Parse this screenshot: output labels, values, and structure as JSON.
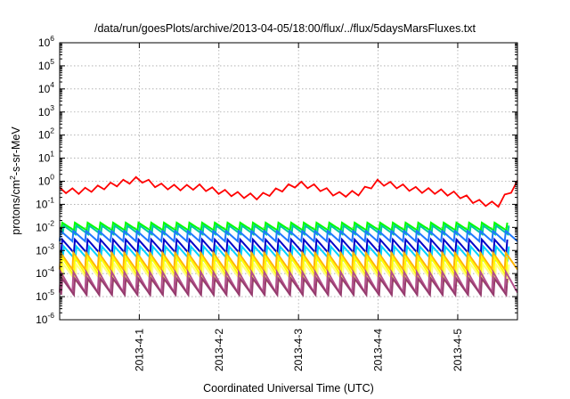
{
  "chart_data": {
    "type": "line",
    "title": "/data/run/goesPlots/archive/2013-04-05/18:00/flux/../flux/5daysMarsFluxes.txt",
    "xlabel": "Coordinated Universal Time (UTC)",
    "ylabel": {
      "prefix": "protons/cm",
      "superscript": "2",
      "suffix": "-s-sr-MeV"
    },
    "y_scale": "log",
    "ylim": [
      1e-06,
      1000000.0
    ],
    "y_ticks": [
      {
        "base": "10",
        "exp": "6",
        "value": 1000000.0
      },
      {
        "base": "10",
        "exp": "5",
        "value": 100000.0
      },
      {
        "base": "10",
        "exp": "4",
        "value": 10000.0
      },
      {
        "base": "10",
        "exp": "3",
        "value": 1000.0
      },
      {
        "base": "10",
        "exp": "2",
        "value": 100.0
      },
      {
        "base": "10",
        "exp": "1",
        "value": 10.0
      },
      {
        "base": "10",
        "exp": "0",
        "value": 1.0
      },
      {
        "base": "10",
        "exp": "-1",
        "value": 0.1
      },
      {
        "base": "10",
        "exp": "-2",
        "value": 0.01
      },
      {
        "base": "10",
        "exp": "-3",
        "value": 0.001
      },
      {
        "base": "10",
        "exp": "-4",
        "value": 0.0001
      },
      {
        "base": "10",
        "exp": "-5",
        "value": 1e-05
      },
      {
        "base": "10",
        "exp": "-6",
        "value": 1e-06
      }
    ],
    "xlim": [
      "2013-03-31T00:00",
      "2013-04-05T18:00"
    ],
    "x_ticks": [
      "2013-4-1",
      "2013-4-2",
      "2013-4-3",
      "2013-4-4",
      "2013-4-5"
    ],
    "x_tick_dates": [
      "2013-04-01T00:00",
      "2013-04-02T00:00",
      "2013-04-03T00:00",
      "2013-04-04T00:00",
      "2013-04-05T00:00"
    ],
    "grid": true,
    "legend": "none",
    "sawtooth_cycles": 36,
    "series": [
      {
        "color": "#ff0000",
        "times": [
          "2013-03-31T00:00",
          "2013-03-31T06:00",
          "2013-03-31T12:00",
          "2013-03-31T18:00",
          "2013-04-01T00:00",
          "2013-04-01T06:00",
          "2013-04-01T12:00",
          "2013-04-01T18:00",
          "2013-04-02T00:00",
          "2013-04-02T06:00",
          "2013-04-02T12:00",
          "2013-04-02T18:00",
          "2013-04-03T00:00",
          "2013-04-03T06:00",
          "2013-04-03T12:00",
          "2013-04-03T18:00",
          "2013-04-04T00:00",
          "2013-04-04T06:00",
          "2013-04-04T12:00",
          "2013-04-04T18:00",
          "2013-04-05T00:00",
          "2013-04-05T06:00",
          "2013-04-05T12:00",
          "2013-04-05T18:00"
        ],
        "values": [
          0.4,
          0.35,
          0.5,
          0.8,
          1.2,
          0.6,
          0.5,
          0.55,
          0.35,
          0.25,
          0.2,
          0.4,
          0.75,
          0.5,
          0.25,
          0.3,
          0.9,
          0.6,
          0.4,
          0.35,
          0.25,
          0.12,
          0.09,
          0.8
        ]
      },
      {
        "color": "#00ff00",
        "times": [
          "2013-03-31T00:00",
          "2013-04-05T18:00"
        ],
        "values": [
          0.016,
          0.016
        ],
        "trough": 0.0075
      },
      {
        "color": "#00c8a0",
        "times": [
          "2013-03-31T00:00",
          "2013-04-05T18:00"
        ],
        "values": [
          0.012,
          0.012
        ],
        "trough": 0.005
      },
      {
        "color": "#1e78ff",
        "times": [
          "2013-03-31T00:00",
          "2013-04-05T18:00"
        ],
        "values": [
          0.007,
          0.007
        ],
        "trough": 0.0025
      },
      {
        "color": "#0000c8",
        "times": [
          "2013-03-31T00:00",
          "2013-04-05T18:00"
        ],
        "values": [
          0.003,
          0.003
        ],
        "trough": 0.0008
      },
      {
        "color": "#00d2ff",
        "times": [
          "2013-03-31T00:00",
          "2013-04-05T18:00"
        ],
        "values": [
          0.0015,
          0.0015
        ],
        "trough": 0.0004
      },
      {
        "color": "#ffb400",
        "times": [
          "2013-03-31T00:00",
          "2013-04-05T18:00"
        ],
        "values": [
          0.0008,
          0.0008
        ],
        "trough": 0.00015
      },
      {
        "color": "#ffff00",
        "times": [
          "2013-03-31T00:00",
          "2013-04-05T18:00"
        ],
        "values": [
          0.0005,
          0.0005
        ],
        "trough": 8e-05
      },
      {
        "color": "#ffff80",
        "times": [
          "2013-03-31T00:00",
          "2013-04-05T18:00"
        ],
        "values": [
          0.00025,
          0.00025
        ],
        "trough": 5e-05
      },
      {
        "color": "#b4508c",
        "times": [
          "2013-03-31T00:00",
          "2013-04-05T18:00"
        ],
        "values": [
          0.00012,
          0.00012
        ],
        "trough": 1.5e-05
      },
      {
        "color": "#963c6e",
        "times": [
          "2013-03-31T00:00",
          "2013-04-05T18:00"
        ],
        "values": [
          6e-05,
          6e-05
        ],
        "trough": 1.2e-05
      }
    ]
  }
}
